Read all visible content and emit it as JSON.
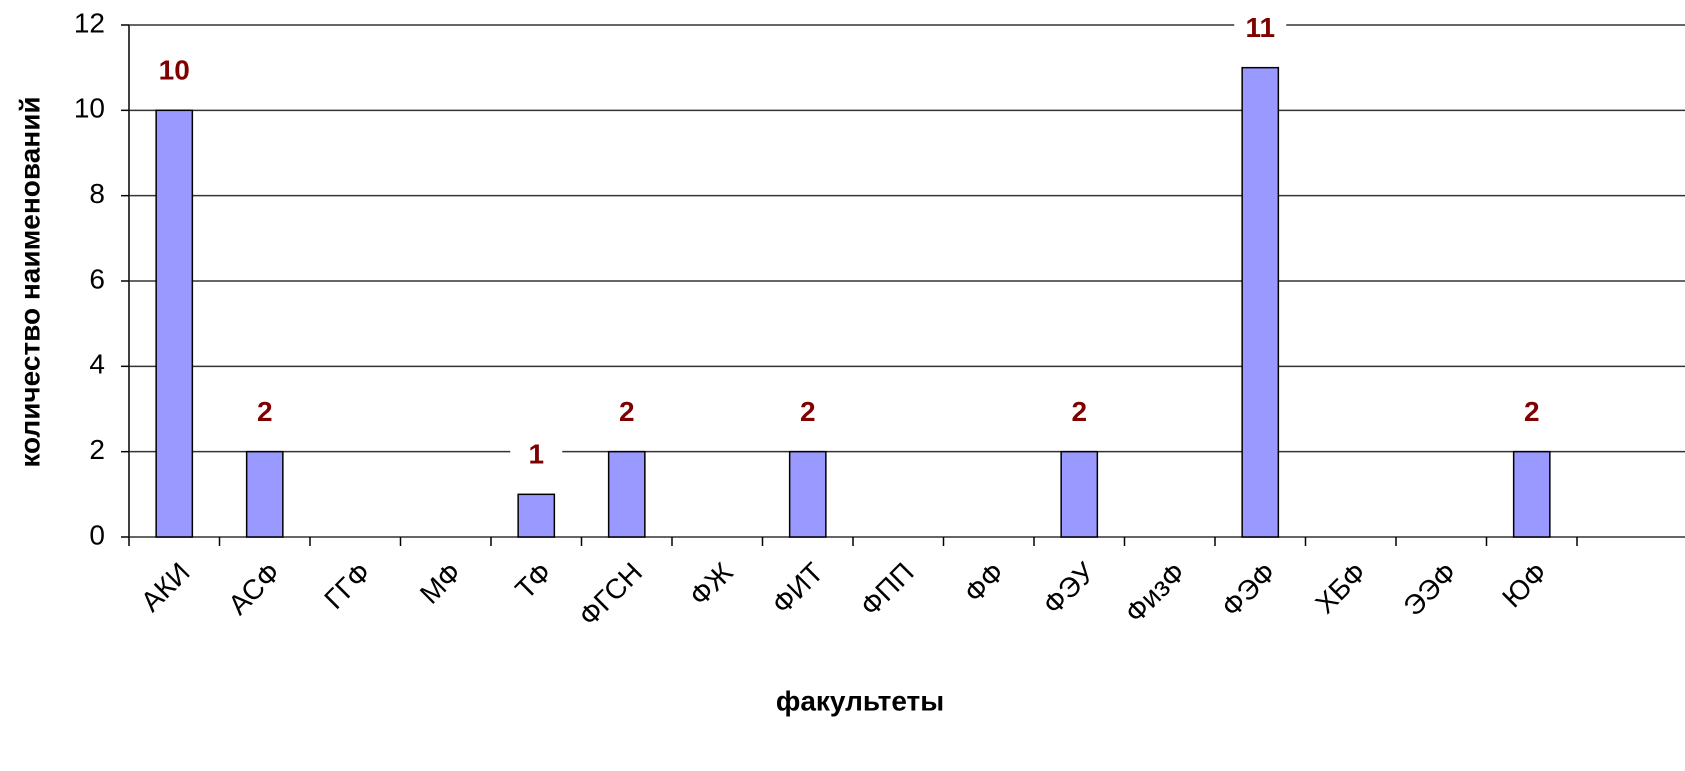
{
  "chart_data": {
    "type": "bar",
    "categories": [
      "АКИ",
      "АСФ",
      "ГГФ",
      "МФ",
      "ТФ",
      "ФГСН",
      "ФЖ",
      "ФИТ",
      "ФПП",
      "ФФ",
      "ФЭУ",
      "ФизФ",
      "ФЭФ",
      "ХБФ",
      "ЭЭФ",
      "ЮФ"
    ],
    "values": [
      10,
      2,
      null,
      null,
      1,
      2,
      null,
      2,
      null,
      null,
      2,
      null,
      11,
      null,
      null,
      2
    ],
    "color": "#9999ff",
    "label_color": "#800000",
    "ylim": [
      0,
      12
    ],
    "yticks": [
      0,
      2,
      4,
      6,
      8,
      10,
      12
    ],
    "grid": true,
    "x_label": "факультеты",
    "y_label": "количество наименований"
  }
}
